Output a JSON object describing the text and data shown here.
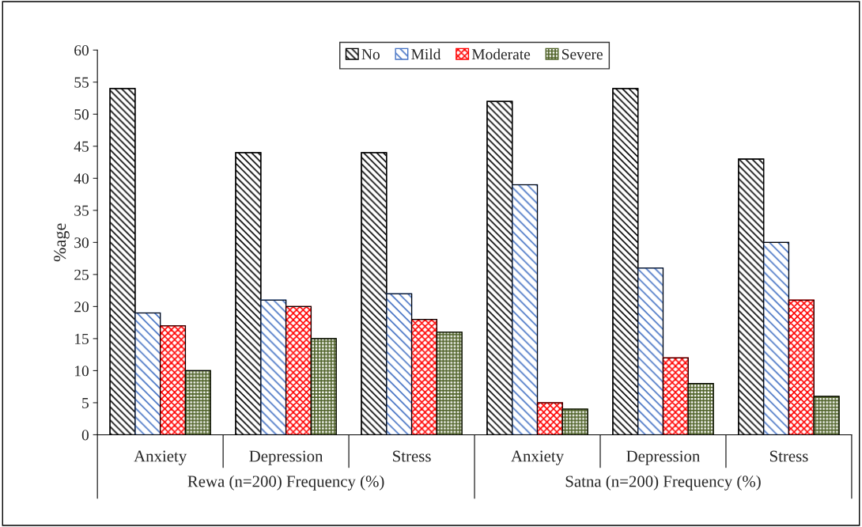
{
  "chart_data": {
    "type": "bar",
    "ylabel": "%age",
    "categories": [
      "Anxiety",
      "Depression",
      "Stress",
      "Anxiety",
      "Depression",
      "Stress"
    ],
    "series": [
      {
        "name": "No",
        "color": "#000000",
        "values": [
          54,
          44,
          44,
          52,
          54,
          43
        ]
      },
      {
        "name": "Mild",
        "color": "#4472c4",
        "values": [
          19,
          21,
          22,
          39,
          26,
          30
        ]
      },
      {
        "name": "Moderate",
        "color": "#ff0000",
        "values": [
          17,
          20,
          18,
          5,
          12,
          21
        ]
      },
      {
        "name": "Severe",
        "color": "#4f6228",
        "values": [
          10,
          15,
          16,
          4,
          8,
          6
        ]
      }
    ],
    "annotations": [
      "Rewa (n=200) Frequency (%)",
      "Satna (n=200) Frequency (%)"
    ],
    "ylim": [
      0,
      60
    ],
    "yticks": [
      0,
      5,
      10,
      15,
      20,
      25,
      30,
      35,
      40,
      45,
      50,
      55,
      60
    ],
    "grid": false,
    "legend": "top"
  }
}
